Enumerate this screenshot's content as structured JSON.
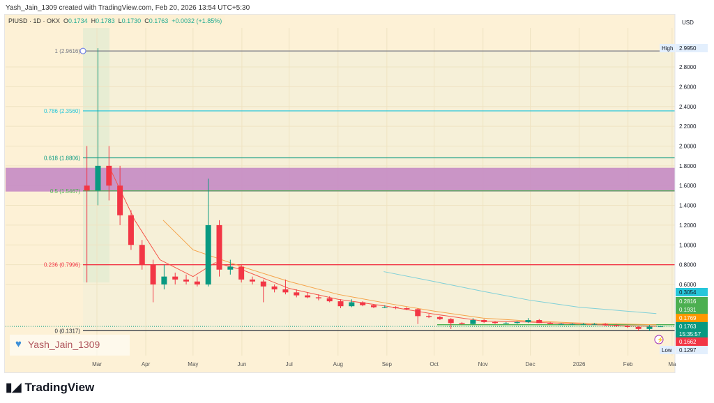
{
  "credit": "Yash_Jain_1309 created with TradingView.com, Feb 20, 2026 13:54 UTC+5:30",
  "legend": {
    "symbol": "PIUSD · 1D · OKX",
    "o_label": "O",
    "o": "0.1734",
    "h_label": "H",
    "h": "0.1783",
    "l_label": "L",
    "l": "0.1730",
    "c_label": "C",
    "c": "0.1763",
    "change": "+0.0032 (+1.85%)"
  },
  "currency": "USD",
  "watermark": "Yash_Jain_1309",
  "brand": "TradingView",
  "colors": {
    "up": "#089981",
    "down": "#f23645",
    "background": "#fdf1d6",
    "zone": "#c58bc4",
    "ema_fast": "#f5564a",
    "ema_slow": "#f5a34a",
    "ma_long": "#7fd0d8"
  },
  "chart_data": {
    "type": "candlestick",
    "ylim": [
      0.05,
      3.05
    ],
    "price_ticks": [
      "2.8000",
      "2.6000",
      "2.4000",
      "2.2000",
      "2.0000",
      "1.8000",
      "1.6000",
      "1.4000",
      "1.2000",
      "1.0000",
      "0.8000",
      "0.6000"
    ],
    "x_ticks": [
      {
        "label": "Mar",
        "date": "2025-03-01"
      },
      {
        "label": "Apr",
        "date": "2025-04-01"
      },
      {
        "label": "May",
        "date": "2025-05-01"
      },
      {
        "label": "Jun",
        "date": "2025-06-01"
      },
      {
        "label": "Jul",
        "date": "2025-07-01"
      },
      {
        "label": "Aug",
        "date": "2025-08-01"
      },
      {
        "label": "Sep",
        "date": "2025-09-01"
      },
      {
        "label": "Oct",
        "date": "2025-10-01"
      },
      {
        "label": "Nov",
        "date": "2025-11-01"
      },
      {
        "label": "Dec",
        "date": "2025-12-01"
      },
      {
        "label": "2026",
        "date": "2026-01-01"
      },
      {
        "label": "Feb",
        "date": "2026-02-01"
      },
      {
        "label": "Ma",
        "date": "2026-03-01"
      }
    ],
    "candles": [
      [
        "2025-02-20",
        1.6,
        2.0,
        0.62,
        1.55
      ],
      [
        "2025-02-27",
        1.55,
        2.99,
        1.4,
        1.8
      ],
      [
        "2025-03-06",
        1.8,
        2.0,
        1.45,
        1.6
      ],
      [
        "2025-03-13",
        1.6,
        1.8,
        1.2,
        1.3
      ],
      [
        "2025-03-20",
        1.3,
        1.35,
        0.95,
        1.0
      ],
      [
        "2025-03-27",
        1.0,
        1.05,
        0.75,
        0.8
      ],
      [
        "2025-04-03",
        0.8,
        0.85,
        0.42,
        0.6
      ],
      [
        "2025-04-10",
        0.6,
        0.8,
        0.55,
        0.68
      ],
      [
        "2025-04-17",
        0.68,
        0.72,
        0.6,
        0.65
      ],
      [
        "2025-04-24",
        0.65,
        0.7,
        0.6,
        0.63
      ],
      [
        "2025-05-01",
        0.63,
        0.68,
        0.58,
        0.6
      ],
      [
        "2025-05-08",
        0.6,
        1.67,
        0.58,
        1.2
      ],
      [
        "2025-05-15",
        1.2,
        1.25,
        0.68,
        0.75
      ],
      [
        "2025-05-22",
        0.75,
        0.85,
        0.7,
        0.78
      ],
      [
        "2025-05-29",
        0.78,
        0.8,
        0.62,
        0.65
      ],
      [
        "2025-06-05",
        0.65,
        0.68,
        0.6,
        0.63
      ],
      [
        "2025-06-12",
        0.63,
        0.65,
        0.42,
        0.58
      ],
      [
        "2025-06-19",
        0.58,
        0.6,
        0.52,
        0.55
      ],
      [
        "2025-06-26",
        0.55,
        0.65,
        0.5,
        0.52
      ],
      [
        "2025-07-03",
        0.52,
        0.55,
        0.47,
        0.49
      ],
      [
        "2025-07-10",
        0.49,
        0.52,
        0.46,
        0.47
      ],
      [
        "2025-07-17",
        0.47,
        0.5,
        0.44,
        0.46
      ],
      [
        "2025-07-24",
        0.46,
        0.48,
        0.42,
        0.43
      ],
      [
        "2025-07-31",
        0.43,
        0.45,
        0.36,
        0.38
      ],
      [
        "2025-08-07",
        0.38,
        0.45,
        0.37,
        0.42
      ],
      [
        "2025-08-14",
        0.42,
        0.43,
        0.38,
        0.39
      ],
      [
        "2025-08-21",
        0.39,
        0.4,
        0.36,
        0.37
      ],
      [
        "2025-08-28",
        0.37,
        0.39,
        0.36,
        0.37
      ],
      [
        "2025-09-04",
        0.37,
        0.38,
        0.35,
        0.36
      ],
      [
        "2025-09-11",
        0.36,
        0.37,
        0.34,
        0.35
      ],
      [
        "2025-09-18",
        0.35,
        0.36,
        0.2,
        0.28
      ],
      [
        "2025-09-25",
        0.28,
        0.3,
        0.26,
        0.27
      ],
      [
        "2025-10-02",
        0.27,
        0.28,
        0.24,
        0.25
      ],
      [
        "2025-10-09",
        0.25,
        0.26,
        0.15,
        0.21
      ],
      [
        "2025-10-16",
        0.21,
        0.22,
        0.19,
        0.2
      ],
      [
        "2025-10-23",
        0.2,
        0.26,
        0.19,
        0.24
      ],
      [
        "2025-10-30",
        0.24,
        0.25,
        0.21,
        0.22
      ],
      [
        "2025-11-06",
        0.22,
        0.23,
        0.2,
        0.21
      ],
      [
        "2025-11-13",
        0.21,
        0.22,
        0.2,
        0.21
      ],
      [
        "2025-11-20",
        0.21,
        0.23,
        0.2,
        0.22
      ],
      [
        "2025-11-27",
        0.22,
        0.26,
        0.21,
        0.24
      ],
      [
        "2025-12-04",
        0.24,
        0.25,
        0.21,
        0.21
      ],
      [
        "2025-12-11",
        0.21,
        0.22,
        0.2,
        0.2
      ],
      [
        "2025-12-18",
        0.2,
        0.21,
        0.19,
        0.2
      ],
      [
        "2025-12-25",
        0.2,
        0.21,
        0.19,
        0.2
      ],
      [
        "2026-01-01",
        0.2,
        0.21,
        0.19,
        0.2
      ],
      [
        "2026-01-08",
        0.2,
        0.21,
        0.19,
        0.2
      ],
      [
        "2026-01-15",
        0.2,
        0.21,
        0.18,
        0.19
      ],
      [
        "2026-01-22",
        0.19,
        0.2,
        0.17,
        0.18
      ],
      [
        "2026-01-29",
        0.18,
        0.19,
        0.16,
        0.17
      ],
      [
        "2026-02-05",
        0.17,
        0.18,
        0.13,
        0.15
      ],
      [
        "2026-02-12",
        0.15,
        0.19,
        0.1297,
        0.1734
      ],
      [
        "2026-02-19",
        0.1734,
        0.1783,
        0.173,
        0.1763
      ]
    ],
    "ema_fast": [
      [
        "2025-03-10",
        1.75
      ],
      [
        "2025-03-25",
        1.25
      ],
      [
        "2025-04-10",
        0.85
      ],
      [
        "2025-05-01",
        0.68
      ],
      [
        "2025-05-15",
        0.82
      ],
      [
        "2025-06-01",
        0.75
      ],
      [
        "2025-07-01",
        0.56
      ],
      [
        "2025-08-01",
        0.45
      ],
      [
        "2025-09-01",
        0.38
      ],
      [
        "2025-10-01",
        0.3
      ],
      [
        "2025-11-01",
        0.23
      ],
      [
        "2025-12-01",
        0.22
      ],
      [
        "2026-01-01",
        0.2
      ],
      [
        "2026-02-01",
        0.18
      ],
      [
        "2026-02-19",
        0.1769
      ]
    ],
    "ema_slow": [
      [
        "2025-04-12",
        1.25
      ],
      [
        "2025-05-01",
        0.95
      ],
      [
        "2025-06-01",
        0.78
      ],
      [
        "2025-07-01",
        0.63
      ],
      [
        "2025-08-01",
        0.5
      ],
      [
        "2025-09-01",
        0.41
      ],
      [
        "2025-10-01",
        0.33
      ],
      [
        "2025-11-01",
        0.26
      ],
      [
        "2025-12-01",
        0.23
      ],
      [
        "2026-01-01",
        0.21
      ],
      [
        "2026-02-19",
        0.1931
      ]
    ],
    "ma_long": [
      [
        "2025-08-30",
        0.73
      ],
      [
        "2025-10-01",
        0.63
      ],
      [
        "2025-11-01",
        0.53
      ],
      [
        "2025-12-01",
        0.44
      ],
      [
        "2026-01-01",
        0.37
      ],
      [
        "2026-02-19",
        0.3054
      ]
    ],
    "fib_levels": [
      {
        "label": "1 (2.9616)",
        "value": 2.9616,
        "color": "#787b86"
      },
      {
        "label": "0.786 (2.3560)",
        "value": 2.356,
        "color": "#26c6da"
      },
      {
        "label": "0.618 (1.8806)",
        "value": 1.8806,
        "color": "#089981"
      },
      {
        "label": "0.5 (1.5467)",
        "value": 1.5467,
        "color": "#4caf50"
      },
      {
        "label": "0.236 (0.7996)",
        "value": 0.7996,
        "color": "#f23645"
      },
      {
        "label": "0 (0.1317)",
        "value": 0.1317,
        "color": "#2a2e39"
      }
    ],
    "zone": [
      1.54,
      1.78
    ],
    "support_line": 0.1931,
    "price_labels": [
      {
        "text": "High",
        "value": "2.9950",
        "bg": "#e3effd",
        "fg": "#131722"
      },
      {
        "value": "0.3054",
        "bg": "#26c6da",
        "fg": "#131722"
      },
      {
        "value": "0.2816",
        "bg": "#4caf50",
        "fg": "#fff"
      },
      {
        "value": "0.1931",
        "bg": "#4caf50",
        "fg": "#fff"
      },
      {
        "value": "0.1769",
        "bg": "#ff9800",
        "fg": "#fff"
      },
      {
        "value": "0.1763",
        "sub": "15:35:57",
        "bg": "#089981",
        "fg": "#fff"
      },
      {
        "value": "0.1662",
        "bg": "#f23645",
        "fg": "#fff"
      },
      {
        "text": "Low",
        "value": "0.1297",
        "bg": "#e3effd",
        "fg": "#131722"
      }
    ]
  }
}
